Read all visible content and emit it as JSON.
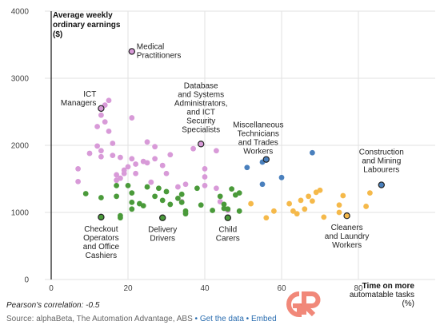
{
  "footer": {
    "correlation": "Pearson's correlation: -0.5",
    "source": "Source: alphaBeta, The Automation Advantage, ABS",
    "sep1": "•",
    "get_data": "Get the data",
    "sep2": "•",
    "embed": "Embed"
  },
  "chart_data": {
    "type": "scatter",
    "title": "",
    "ylabel_lines": [
      "Average weekly",
      "ordinary earnings",
      "($)"
    ],
    "xlabel_lines": [
      "Time on more",
      "automatable tasks",
      "(%)"
    ],
    "xlim": [
      -10,
      100
    ],
    "ylim": [
      0,
      4000
    ],
    "xticks": [
      0,
      20,
      40,
      60,
      80
    ],
    "yticks": [
      0,
      1000,
      2000,
      3000,
      4000
    ],
    "grid": true,
    "colors": {
      "pink": "#d89ad8",
      "green": "#4a9a3a",
      "blue": "#4a80bd",
      "orange": "#f5b94a",
      "outline": "#222222"
    },
    "series": [
      {
        "color": "pink",
        "points": [
          [
            7,
            1650
          ],
          [
            7,
            1460
          ],
          [
            10,
            1880
          ],
          [
            12,
            1990
          ],
          [
            12,
            2280
          ],
          [
            13,
            1920
          ],
          [
            13,
            1830
          ],
          [
            13,
            2450
          ],
          [
            14,
            2600
          ],
          [
            14,
            2350
          ],
          [
            15,
            2670
          ],
          [
            15,
            2210
          ],
          [
            16,
            2030
          ],
          [
            16,
            1850
          ],
          [
            17,
            1560
          ],
          [
            17,
            1480
          ],
          [
            18,
            1510
          ],
          [
            18,
            1820
          ],
          [
            19,
            1630
          ],
          [
            19,
            1580
          ],
          [
            20,
            1680
          ],
          [
            21,
            2410
          ],
          [
            21,
            1800
          ],
          [
            22,
            1720
          ],
          [
            22,
            1580
          ],
          [
            24,
            1760
          ],
          [
            25,
            2050
          ],
          [
            25,
            1740
          ],
          [
            26,
            1450
          ],
          [
            27,
            1980
          ],
          [
            27,
            1800
          ],
          [
            29,
            1700
          ],
          [
            30,
            1580
          ],
          [
            31,
            1860
          ],
          [
            33,
            1380
          ],
          [
            34,
            1160
          ],
          [
            35,
            1420
          ],
          [
            37,
            1950
          ],
          [
            40,
            1650
          ],
          [
            40,
            1530
          ],
          [
            40,
            1400
          ],
          [
            43,
            1360
          ],
          [
            43,
            1920
          ],
          [
            44,
            1160
          ],
          [
            46,
            1030
          ]
        ]
      },
      {
        "color": "green",
        "points": [
          [
            9,
            1280
          ],
          [
            13,
            1220
          ],
          [
            17,
            1400
          ],
          [
            17,
            1240
          ],
          [
            18,
            950
          ],
          [
            18,
            920
          ],
          [
            20,
            1400
          ],
          [
            21,
            1290
          ],
          [
            21,
            1150
          ],
          [
            21,
            1050
          ],
          [
            23,
            1130
          ],
          [
            24,
            1100
          ],
          [
            25,
            1380
          ],
          [
            27,
            1240
          ],
          [
            28,
            1360
          ],
          [
            29,
            1180
          ],
          [
            30,
            1310
          ],
          [
            31,
            1120
          ],
          [
            33,
            1210
          ],
          [
            34,
            1270
          ],
          [
            34,
            1150
          ],
          [
            35,
            1020
          ],
          [
            35,
            980
          ],
          [
            38,
            1360
          ],
          [
            39,
            1110
          ],
          [
            42,
            1030
          ],
          [
            44,
            1240
          ],
          [
            45,
            1120
          ],
          [
            45,
            1060
          ],
          [
            46,
            1050
          ],
          [
            47,
            1350
          ],
          [
            48,
            1260
          ],
          [
            49,
            1290
          ],
          [
            49,
            1020
          ]
        ]
      },
      {
        "color": "blue",
        "points": [
          [
            51,
            1670
          ],
          [
            55,
            1420
          ],
          [
            55,
            1750
          ],
          [
            60,
            1520
          ],
          [
            68,
            1890
          ]
        ]
      },
      {
        "color": "orange",
        "points": [
          [
            52,
            1130
          ],
          [
            56,
            920
          ],
          [
            58,
            1020
          ],
          [
            62,
            1130
          ],
          [
            63,
            1020
          ],
          [
            64,
            980
          ],
          [
            65,
            1180
          ],
          [
            66,
            1050
          ],
          [
            67,
            1240
          ],
          [
            68,
            1170
          ],
          [
            69,
            1300
          ],
          [
            70,
            1330
          ],
          [
            71,
            930
          ],
          [
            75,
            1000
          ],
          [
            75,
            1110
          ],
          [
            76,
            1250
          ],
          [
            82,
            1090
          ],
          [
            83,
            1290
          ]
        ]
      }
    ],
    "labeled_points": [
      {
        "x": 21,
        "y": 3400,
        "color": "pink",
        "lines": [
          "Medical",
          "Practitioners"
        ]
      },
      {
        "x": 13,
        "y": 2550,
        "color": "pink",
        "lines": [
          "ICT",
          "Managers"
        ]
      },
      {
        "x": 39,
        "y": 2020,
        "color": "pink",
        "lines": [
          "Database",
          "and Systems",
          "Administrators,",
          "and ICT",
          "Security",
          "Specialists"
        ]
      },
      {
        "x": 56,
        "y": 1790,
        "color": "blue",
        "lines": [
          "Miscellaneous",
          "Technicians",
          "and Trades",
          "Workers"
        ]
      },
      {
        "x": 86,
        "y": 1410,
        "color": "blue",
        "lines": [
          "Construction",
          "and Mining",
          "Labourers"
        ]
      },
      {
        "x": 13,
        "y": 930,
        "color": "green",
        "lines": [
          "Checkout",
          "Operators",
          "and Office",
          "Cashiers"
        ]
      },
      {
        "x": 29,
        "y": 920,
        "color": "green",
        "lines": [
          "Delivery",
          "Drivers"
        ]
      },
      {
        "x": 46,
        "y": 920,
        "color": "green",
        "lines": [
          "Child",
          "Carers"
        ]
      },
      {
        "x": 77,
        "y": 950,
        "color": "orange",
        "lines": [
          "Cleaners",
          "and Laundry",
          "Workers"
        ]
      }
    ]
  }
}
